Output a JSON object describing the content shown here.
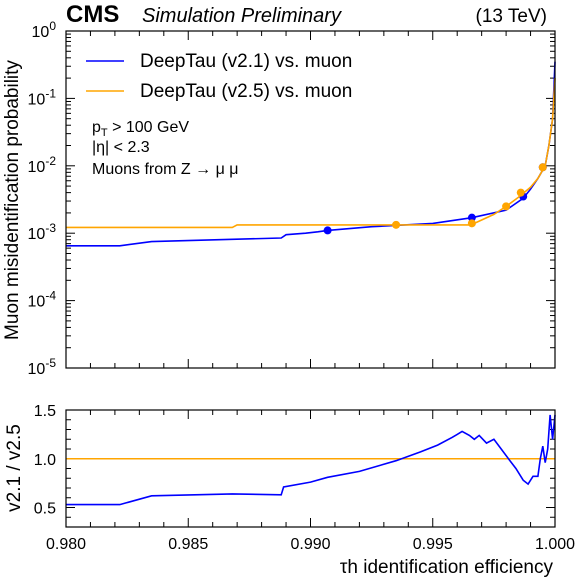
{
  "header": {
    "experiment": "CMS",
    "status": "Simulation Preliminary",
    "energy": "(13 TeV)"
  },
  "annotations": {
    "line1_base": "p",
    "line1_sub": "T",
    "line1_rest": " > 100 GeV",
    "line2": "|η| < 2.3",
    "line3": "Muons from Z → μ μ"
  },
  "chart_data": [
    {
      "type": "line",
      "xlabel": "τh identification efficiency",
      "ylabel": "Muon misidentification probability",
      "xlim": [
        0.98,
        1.0
      ],
      "ylim": [
        1e-05,
        1
      ],
      "yscale": "log",
      "y_tick_labels": [
        "10",
        "10",
        "10",
        "10",
        "10",
        "10"
      ],
      "y_tick_exponents": [
        "-5",
        "-4",
        "-3",
        "-2",
        "-1",
        "0"
      ],
      "y_tick_values": [
        1e-05,
        0.0001,
        0.001,
        0.01,
        0.1,
        1
      ],
      "legend_placement": "top-left",
      "series": [
        {
          "name": "DeepTau (v2.1) vs. muon",
          "color": "#0000ff",
          "x": [
            0.98,
            0.9822,
            0.9835,
            0.9888,
            0.989,
            0.9898,
            0.9903,
            0.9907,
            0.9925,
            0.995,
            0.9966,
            0.998,
            0.9987,
            0.999,
            0.9993,
            0.9996,
            0.99975,
            0.9999,
            1.0
          ],
          "y": [
            0.00065,
            0.00065,
            0.00075,
            0.00085,
            0.00095,
            0.001,
            0.00105,
            0.0011,
            0.00125,
            0.0014,
            0.0017,
            0.0022,
            0.0033,
            0.0045,
            0.0065,
            0.01,
            0.02,
            0.05,
            0.35
          ],
          "markers_x": [
            0.9907,
            0.9966,
            0.9987,
            0.9995
          ],
          "markers_y": [
            0.0011,
            0.0017,
            0.0035,
            0.0095
          ]
        },
        {
          "name": "DeepTau (v2.5) vs. muon",
          "color": "#ffa500",
          "x": [
            0.98,
            0.9868,
            0.987,
            0.9935,
            0.9965,
            0.9967,
            0.9975,
            0.998,
            0.9985,
            0.999,
            0.9993,
            0.9996,
            0.99975,
            0.9999,
            1.0
          ],
          "y": [
            0.00122,
            0.00122,
            0.00133,
            0.00133,
            0.00133,
            0.0014,
            0.0019,
            0.0025,
            0.0034,
            0.0048,
            0.0065,
            0.01,
            0.02,
            0.05,
            0.2
          ],
          "markers_x": [
            0.9935,
            0.9966,
            0.998,
            0.9986,
            0.9995
          ],
          "markers_y": [
            0.00133,
            0.0014,
            0.0025,
            0.004,
            0.0095
          ]
        }
      ]
    },
    {
      "type": "line",
      "xlabel": "τh identification efficiency",
      "ylabel": "v2.1 / v2.5",
      "xlim": [
        0.98,
        1.0
      ],
      "ylim": [
        0.3,
        1.5
      ],
      "x_tick_labels": [
        "0.980",
        "0.985",
        "0.990",
        "0.995",
        "1.000"
      ],
      "x_tick_values": [
        0.98,
        0.985,
        0.99,
        0.995,
        1.0
      ],
      "y_tick_labels": [
        "0.5",
        "1.0",
        "1.5"
      ],
      "y_tick_values": [
        0.5,
        1.0,
        1.5
      ],
      "reference_line": {
        "y": 1.0,
        "color": "#ffa500"
      },
      "series": [
        {
          "color": "#0000ff",
          "x": [
            0.98,
            0.9822,
            0.9835,
            0.9868,
            0.9888,
            0.9889,
            0.99,
            0.9907,
            0.992,
            0.9935,
            0.9945,
            0.9952,
            0.9958,
            0.996,
            0.9962,
            0.9965,
            0.9967,
            0.9969,
            0.9972,
            0.9975,
            0.9978,
            0.9981,
            0.9984,
            0.9987,
            0.9989,
            0.9991,
            0.9993,
            0.9994,
            0.9995,
            0.9996,
            0.9997,
            0.9998,
            0.9999,
            1.0
          ],
          "y": [
            0.53,
            0.53,
            0.62,
            0.64,
            0.63,
            0.71,
            0.76,
            0.81,
            0.87,
            0.98,
            1.07,
            1.14,
            1.22,
            1.25,
            1.28,
            1.24,
            1.2,
            1.24,
            1.16,
            1.2,
            1.1,
            1.0,
            0.9,
            0.78,
            0.74,
            0.82,
            0.82,
            1.0,
            1.13,
            0.96,
            1.1,
            1.45,
            1.2,
            1.45
          ]
        }
      ]
    }
  ]
}
